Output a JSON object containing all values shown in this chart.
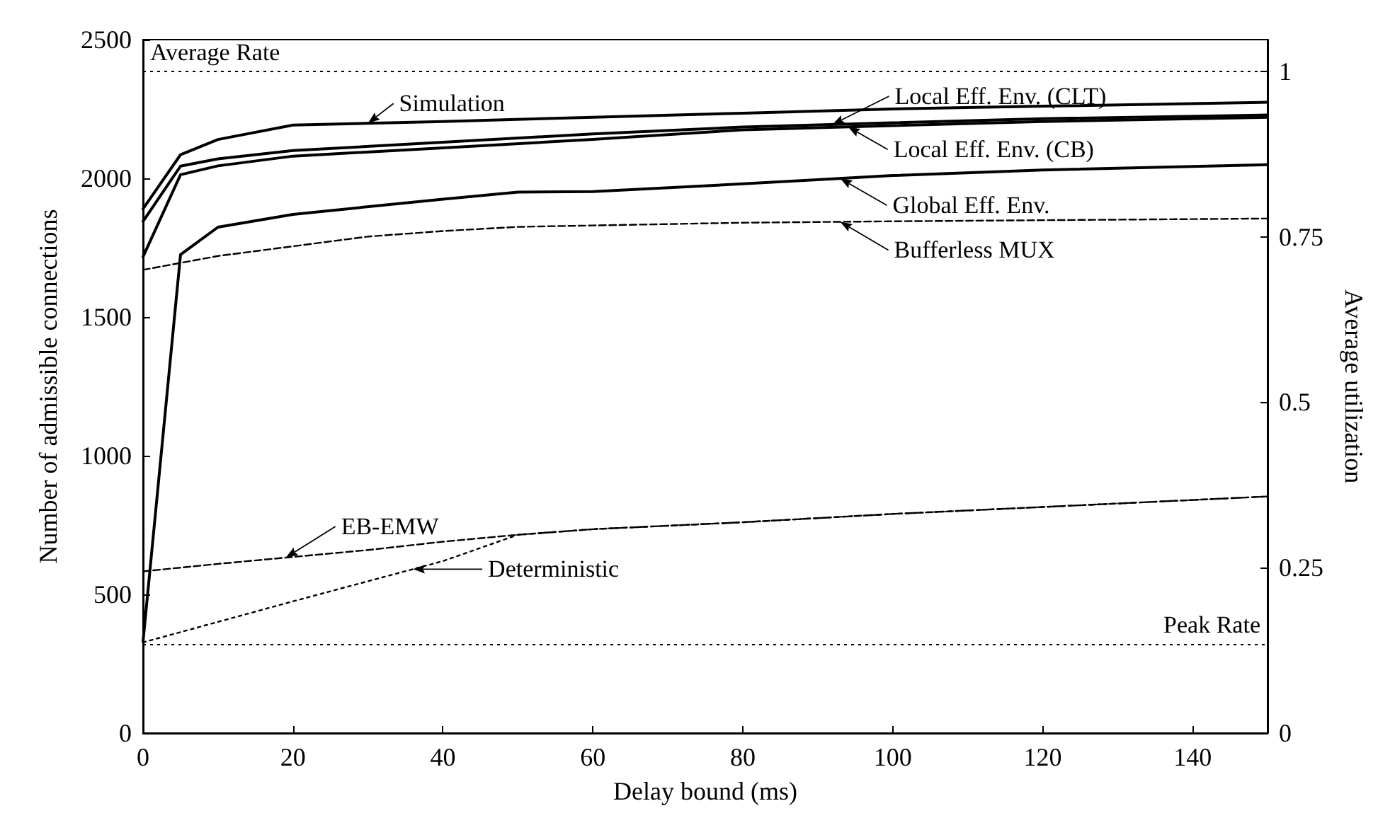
{
  "chart_data": {
    "type": "line",
    "xlabel": "Delay bound (ms)",
    "ylabel": "Number of admissible connections",
    "y2label": "Average utilization",
    "xlim": [
      0,
      150
    ],
    "xticks": [
      0,
      20,
      40,
      60,
      80,
      100,
      120,
      140
    ],
    "ylim": [
      0,
      2500
    ],
    "yticks": [
      0,
      500,
      1000,
      1500,
      2000,
      2500
    ],
    "y2lim": [
      0,
      1.048
    ],
    "y2ticks": [
      0,
      0.25,
      0.5,
      0.75,
      1
    ],
    "grid": false,
    "legend": "top right",
    "marker": "none",
    "series": [
      {
        "name": "Simulation",
        "color": "#000000",
        "line_style": "solid",
        "x": [
          0,
          5,
          10,
          20,
          40,
          60,
          80,
          100,
          120,
          150
        ],
        "values": [
          1890,
          2085,
          2140,
          2192,
          2205,
          2220,
          2235,
          2250,
          2260,
          2274
        ]
      },
      {
        "name": "Local Eff. Env. (CLT)",
        "color": "#000000",
        "line_style": "solid",
        "x": [
          0,
          5,
          10,
          20,
          40,
          60,
          80,
          100,
          120,
          150
        ],
        "values": [
          1845,
          2044,
          2070,
          2100,
          2130,
          2160,
          2185,
          2200,
          2215,
          2228
        ]
      },
      {
        "name": "Local Eff. Env. (CB)",
        "color": "#000000",
        "line_style": "solid",
        "x": [
          0,
          5,
          10,
          20,
          40,
          60,
          80,
          100,
          120,
          150
        ],
        "values": [
          1717,
          2013,
          2045,
          2080,
          2110,
          2140,
          2175,
          2190,
          2205,
          2220
        ]
      },
      {
        "name": "Global Eff. Env.",
        "color": "#000000",
        "line_style": "solid",
        "x": [
          0,
          5,
          10,
          20,
          40,
          50,
          60,
          80,
          100,
          120,
          150
        ],
        "values": [
          330,
          1725,
          1824,
          1870,
          1925,
          1950,
          1952,
          1980,
          2010,
          2030,
          2049
        ]
      },
      {
        "name": "Bufferless MUX",
        "color": "#000000",
        "line_style": "dashed",
        "x": [
          0,
          10,
          20,
          30,
          40,
          50,
          60,
          80,
          100,
          150
        ],
        "values": [
          1670,
          1720,
          1755,
          1790,
          1810,
          1825,
          1830,
          1840,
          1845,
          1855
        ]
      },
      {
        "name": "EB-EMW",
        "color": "#000000",
        "line_style": "dashed",
        "x": [
          0,
          10,
          20,
          30,
          40,
          50,
          60,
          80,
          100,
          120,
          150
        ],
        "values": [
          583,
          610,
          635,
          660,
          690,
          715,
          735,
          760,
          790,
          815,
          853
        ]
      },
      {
        "name": "Deterministic",
        "color": "#000000",
        "line_style": "dotted",
        "x": [
          0,
          20,
          40,
          50,
          60,
          80,
          100,
          120,
          150
        ],
        "values": [
          327,
          475,
          620,
          715,
          735,
          760,
          790,
          815,
          853
        ]
      }
    ],
    "ref_lines": [
      {
        "axis": "y",
        "value": 2385,
        "label": "Average Rate",
        "line_style": "dotted",
        "color": "#000000"
      },
      {
        "axis": "y",
        "value": 322,
        "label": "Peak Rate",
        "line_style": "dotted",
        "color": "#000000"
      }
    ]
  }
}
